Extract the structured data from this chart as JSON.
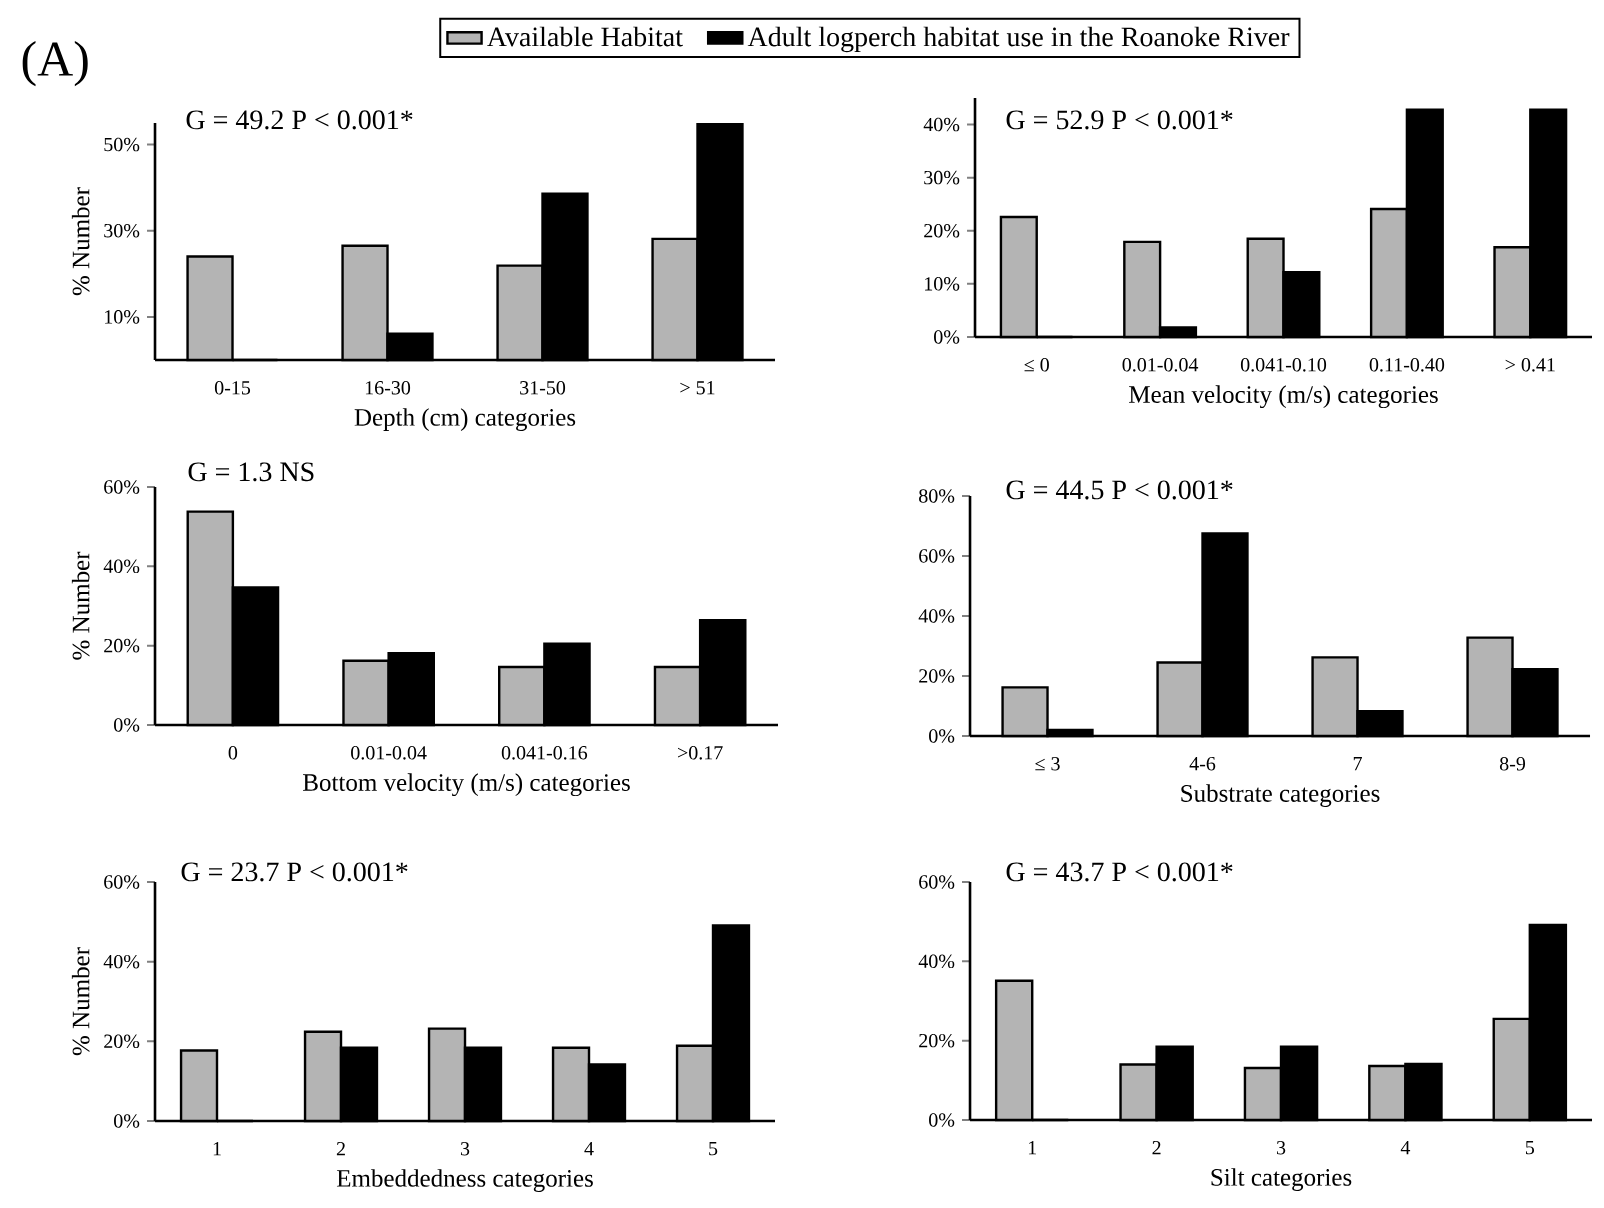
{
  "chart_data": [
    {
      "type": "bar",
      "title": "(A)",
      "legend": "top",
      "categories": [
        "0-15",
        "16-30",
        "31-50",
        "> 51"
      ],
      "xlabel": "Depth (cm) categories",
      "ylabel": "% Number",
      "annotations": [
        "G = 49.2 P < 0.001*"
      ],
      "ylim": [
        0,
        55
      ],
      "yticks": [
        {
          "value": 10,
          "label": "10%"
        },
        {
          "value": 30,
          "label": "30%"
        },
        {
          "value": 50,
          "label": "50%"
        }
      ],
      "series": [
        {
          "name": "Available Habitat",
          "color": "#b4b4b4",
          "values": [
            24.0,
            26.5,
            21.9,
            28.1
          ]
        },
        {
          "name": "Adult logperch habitat use in the Roanoke River",
          "color": "#000000",
          "values": [
            0,
            6.1,
            38.6,
            54.7
          ]
        }
      ]
    },
    {
      "type": "bar",
      "categories": [
        "≤ 0",
        "0.01-0.04",
        "0.041-0.10",
        "0.11-0.40",
        "> 0.41"
      ],
      "xlabel": "Mean velocity (m/s) categories",
      "annotations": [
        "G = 52.9 P < 0.001*"
      ],
      "ylim": [
        0,
        45
      ],
      "yticks": [
        {
          "value": 0,
          "label": "0%"
        },
        {
          "value": 10,
          "label": "10%"
        },
        {
          "value": 20,
          "label": "20%"
        },
        {
          "value": 30,
          "label": "30%"
        },
        {
          "value": 40,
          "label": "40%"
        }
      ],
      "series": [
        {
          "color": "#b4b4b4",
          "values": [
            22.6,
            17.9,
            18.5,
            24.1,
            16.9
          ]
        },
        {
          "color": "#000000",
          "values": [
            0,
            1.8,
            12.2,
            42.8,
            42.8
          ]
        }
      ]
    },
    {
      "type": "bar",
      "categories": [
        "0",
        "0.01-0.04",
        "0.041-0.16",
        ">0.17"
      ],
      "xlabel": "Bottom velocity (m/s) categories",
      "ylabel": "% Number",
      "annotations": [
        "G = 1.3 NS"
      ],
      "ylim": [
        0,
        60
      ],
      "yticks": [
        {
          "value": 0,
          "label": "0%"
        },
        {
          "value": 20,
          "label": "20%"
        },
        {
          "value": 40,
          "label": "40%"
        },
        {
          "value": 60,
          "label": "60%"
        }
      ],
      "series": [
        {
          "color": "#b4b4b4",
          "values": [
            53.8,
            16.2,
            14.6,
            14.6
          ]
        },
        {
          "color": "#000000",
          "values": [
            34.7,
            18.1,
            20.5,
            26.4
          ]
        }
      ]
    },
    {
      "type": "bar",
      "categories": [
        "≤ 3",
        "4-6",
        "7",
        "8-9"
      ],
      "xlabel": "Substrate categories",
      "annotations": [
        "G = 44.5 P < 0.001*"
      ],
      "ylim": [
        0,
        80
      ],
      "yticks": [
        {
          "value": 0,
          "label": "0%"
        },
        {
          "value": 20,
          "label": "20%"
        },
        {
          "value": 40,
          "label": "40%"
        },
        {
          "value": 60,
          "label": "60%"
        },
        {
          "value": 80,
          "label": "80%"
        }
      ],
      "series": [
        {
          "color": "#b4b4b4",
          "values": [
            16.2,
            24.5,
            26.2,
            32.8
          ]
        },
        {
          "color": "#000000",
          "values": [
            2.0,
            67.5,
            8.3,
            22.3
          ]
        }
      ]
    },
    {
      "type": "bar",
      "categories": [
        "1",
        "2",
        "3",
        "4",
        "5"
      ],
      "xlabel": "Embeddedness categories",
      "ylabel": "% Number",
      "annotations": [
        "G = 23.7 P < 0.001*"
      ],
      "ylim": [
        0,
        60
      ],
      "yticks": [
        {
          "value": 0,
          "label": "0%"
        },
        {
          "value": 20,
          "label": "20%"
        },
        {
          "value": 40,
          "label": "40%"
        },
        {
          "value": 60,
          "label": "60%"
        }
      ],
      "series": [
        {
          "color": "#b4b4b4",
          "values": [
            17.7,
            22.4,
            23.2,
            18.4,
            18.9
          ]
        },
        {
          "color": "#000000",
          "values": [
            0,
            18.4,
            18.4,
            14.2,
            49.1
          ]
        }
      ]
    },
    {
      "type": "bar",
      "categories": [
        "1",
        "2",
        "3",
        "4",
        "5"
      ],
      "xlabel": "Silt categories",
      "annotations": [
        "G = 43.7 P < 0.001*"
      ],
      "ylim": [
        0,
        60
      ],
      "yticks": [
        {
          "value": 0,
          "label": "0%"
        },
        {
          "value": 20,
          "label": "20%"
        },
        {
          "value": 40,
          "label": "40%"
        },
        {
          "value": 60,
          "label": "60%"
        }
      ],
      "series": [
        {
          "color": "#b4b4b4",
          "values": [
            35.1,
            14.0,
            13.1,
            13.6,
            25.5
          ]
        },
        {
          "color": "#000000",
          "values": [
            0,
            18.5,
            18.5,
            14.1,
            49.2
          ]
        }
      ]
    }
  ]
}
